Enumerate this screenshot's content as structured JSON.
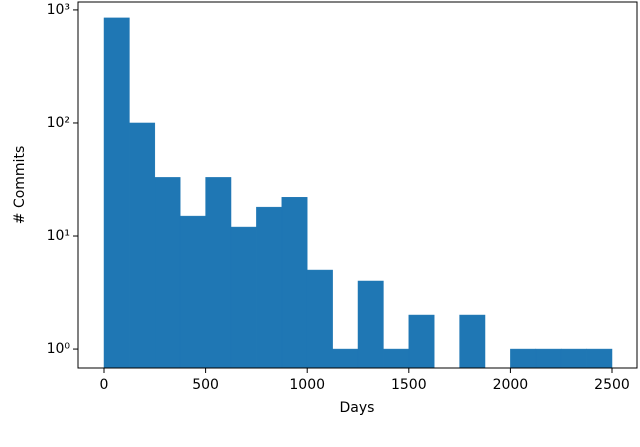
{
  "chart_data": {
    "type": "histogram",
    "xlabel": "Days",
    "ylabel": "# Commits",
    "bins": [
      0,
      125,
      250,
      375,
      500,
      625,
      750,
      875,
      1000,
      1125,
      1250,
      1375,
      1500,
      1625,
      1750,
      1875,
      2000,
      2125,
      2250,
      2375,
      2500
    ],
    "values": [
      850,
      100,
      33,
      15,
      33,
      12,
      18,
      22,
      5,
      1,
      4,
      1,
      2,
      0,
      2,
      0,
      1,
      1,
      1,
      1
    ],
    "color": "#1f77b4",
    "xlim": [
      -128,
      2623
    ],
    "xticks": [
      0,
      500,
      1000,
      1500,
      2000,
      2500
    ],
    "ylim": [
      0.68,
      1175
    ],
    "ylog": true,
    "yticks": [
      {
        "value": 1,
        "label": "10⁰"
      },
      {
        "value": 10,
        "label": "10¹"
      },
      {
        "value": 100,
        "label": "10²"
      },
      {
        "value": 1000,
        "label": "10³"
      }
    ]
  }
}
